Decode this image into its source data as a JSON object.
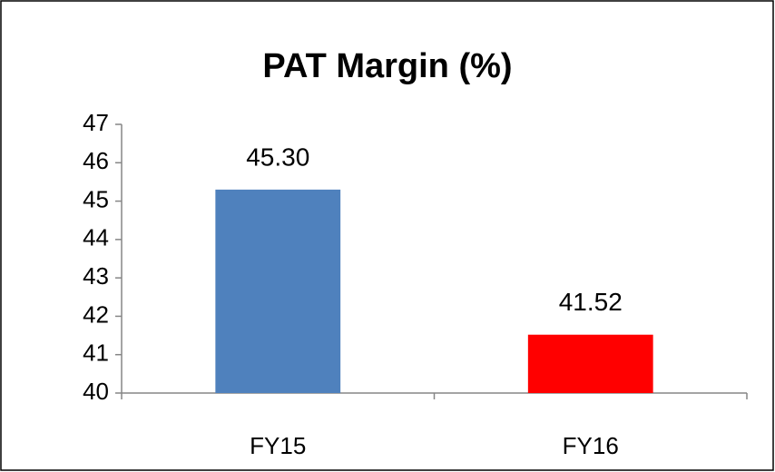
{
  "chart_data": {
    "type": "bar",
    "title": "PAT Margin (%)",
    "categories": [
      "FY15",
      "FY16"
    ],
    "values": [
      45.3,
      41.52
    ],
    "value_labels": [
      "45.30",
      "41.52"
    ],
    "colors": [
      "#4f81bd",
      "#ff0000"
    ],
    "ylim": [
      40,
      47
    ],
    "yticks": [
      40,
      41,
      42,
      43,
      44,
      45,
      46,
      47
    ],
    "grid": false
  }
}
